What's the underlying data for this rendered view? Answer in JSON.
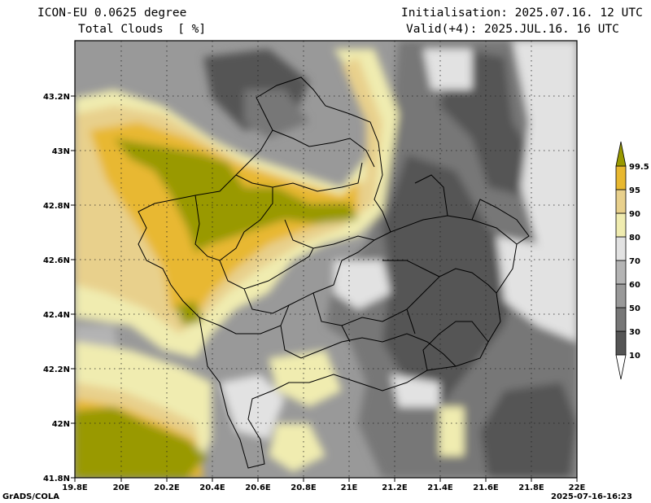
{
  "header": {
    "model": "ICON-EU 0.0625 degree",
    "variable": "Total Clouds  [ %]",
    "initialisation": "Initialisation: 2025.07.16. 12 UTC",
    "valid": "Valid(+4): 2025.JUL.16. 16 UTC"
  },
  "map": {
    "lon_range": [
      19.8,
      22.0
    ],
    "lat_range": [
      41.8,
      43.4
    ],
    "lon_ticks": [
      "19.8E",
      "20E",
      "20.2E",
      "20.4E",
      "20.6E",
      "20.8E",
      "21E",
      "21.2E",
      "21.4E",
      "21.6E",
      "21.8E",
      "22E"
    ],
    "lat_ticks": [
      "41.8N",
      "42N",
      "42.2N",
      "42.4N",
      "42.6N",
      "42.8N",
      "43N",
      "43.2N"
    ],
    "grid": "dotted"
  },
  "colorbar": {
    "labels": [
      "10",
      "30",
      "50",
      "60",
      "70",
      "80",
      "90",
      "95",
      "99.5"
    ],
    "colors": [
      "#555555",
      "#777777",
      "#999999",
      "#b4b4b4",
      "#e2e2e2",
      "#f0ecb0",
      "#e8d08c",
      "#e8b830",
      "#999900"
    ]
  },
  "footer": {
    "left": "GrADS/COLA",
    "right": "2025-07-16-16:23"
  }
}
